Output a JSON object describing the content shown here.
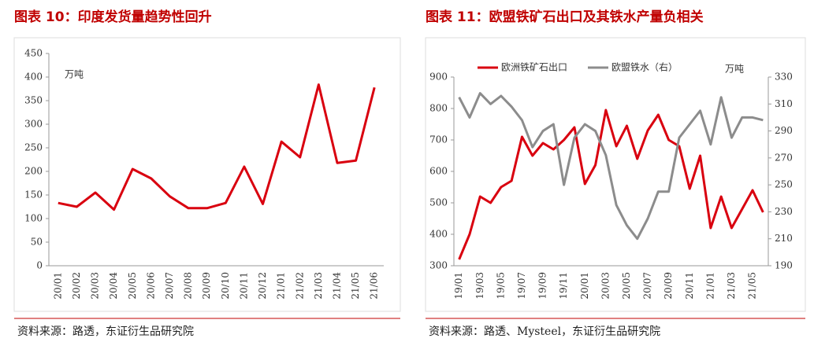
{
  "chart_data": [
    {
      "type": "line",
      "title": "图表 10：印度发货量趋势性回升",
      "unit": "万吨",
      "source": "资料来源：路透，东证衍生品研究院",
      "categories": [
        "20/01",
        "20/02",
        "20/03",
        "20/04",
        "20/05",
        "20/06",
        "20/07",
        "20/08",
        "20/09",
        "20/10",
        "20/11",
        "20/12",
        "21/01",
        "21/02",
        "21/03",
        "21/04",
        "21/05",
        "21/06"
      ],
      "series": [
        {
          "name": null,
          "color": "#d9000f",
          "values": [
            133,
            125,
            155,
            119,
            205,
            185,
            147,
            122,
            122,
            133,
            210,
            131,
            263,
            230,
            384,
            218,
            223,
            378
          ]
        }
      ],
      "ylim": [
        0,
        450
      ],
      "yticks": [
        0,
        50,
        100,
        150,
        200,
        250,
        300,
        350,
        400,
        450
      ]
    },
    {
      "type": "line",
      "title": "图表 11：欧盟铁矿石出口及其铁水产量负相关",
      "unit": "万吨",
      "source": "资料来源：路透、Mysteel，东证衍生品研究院",
      "categories": [
        "19/01",
        null,
        "19/03",
        null,
        "19/05",
        null,
        "19/07",
        null,
        "19/09",
        null,
        "19/11",
        null,
        "20/01",
        null,
        "20/03",
        null,
        "20/05",
        null,
        "20/07",
        null,
        "20/09",
        null,
        "20/11",
        null,
        "21/01",
        null,
        "21/03",
        null,
        "21/05",
        null
      ],
      "series": [
        {
          "name": "欧洲铁矿石出口",
          "color": "#d9000f",
          "values": [
            320,
            400,
            520,
            500,
            550,
            570,
            710,
            650,
            690,
            670,
            700,
            740,
            560,
            620,
            795,
            680,
            745,
            640,
            730,
            780,
            700,
            680,
            545,
            650,
            420,
            520,
            420,
            480,
            540,
            470
          ]
        },
        {
          "name": "欧盟铁水（右）",
          "color": "#8c8c8c",
          "axis": "y2",
          "values": [
            315,
            300,
            318,
            310,
            316,
            308,
            298,
            278,
            290,
            295,
            250,
            285,
            295,
            290,
            272,
            235,
            220,
            210,
            225,
            245,
            245,
            285,
            295,
            305,
            280,
            315,
            285,
            300,
            300,
            298
          ]
        }
      ],
      "ylim": [
        300,
        900
      ],
      "yticks": [
        300,
        400,
        500,
        600,
        700,
        800,
        900
      ],
      "y2lim": [
        190,
        330
      ],
      "y2ticks": [
        190,
        210,
        230,
        250,
        270,
        290,
        310,
        330
      ]
    }
  ]
}
